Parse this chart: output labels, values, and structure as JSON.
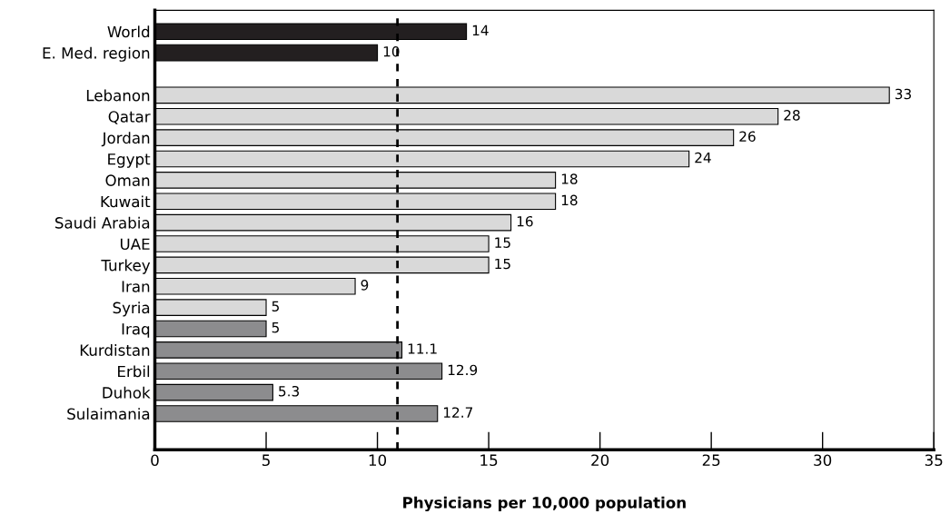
{
  "chart_data": {
    "type": "bar",
    "orientation": "horizontal",
    "xlabel": "Physicians per 10,000 population",
    "categories": [
      "World",
      "E. Med. region",
      null,
      "Lebanon",
      "Qatar",
      "Jordan",
      "Egypt",
      "Oman",
      "Kuwait",
      "Saudi Arabia",
      "UAE",
      "Turkey",
      "Iran",
      "Syria",
      "Iraq",
      "Kurdistan",
      "Erbil",
      "Duhok",
      "Sulaimania"
    ],
    "values": [
      14,
      10,
      null,
      33,
      28,
      26,
      24,
      18,
      18,
      16,
      15,
      15,
      9,
      5,
      5,
      11.1,
      12.9,
      5.3,
      12.7
    ],
    "colors": [
      "#231f20",
      "#231f20",
      "#231f20",
      "#d9d9d9",
      "#d9d9d9",
      "#d9d9d9",
      "#d9d9d9",
      "#d9d9d9",
      "#d9d9d9",
      "#d9d9d9",
      "#d9d9d9",
      "#d9d9d9",
      "#d9d9d9",
      "#d9d9d9",
      "#8c8c8e",
      "#8c8c8e",
      "#8c8c8e",
      "#8c8c8e",
      "#8c8c8e"
    ],
    "xlim": [
      0,
      35
    ],
    "xticks": [
      0,
      5,
      10,
      15,
      20,
      25,
      30,
      35
    ],
    "grid": false,
    "data_labels": true,
    "ref_lines": [
      {
        "axis": "x",
        "value": 10.9,
        "color": "#000000",
        "line_style": "dashed"
      }
    ]
  }
}
